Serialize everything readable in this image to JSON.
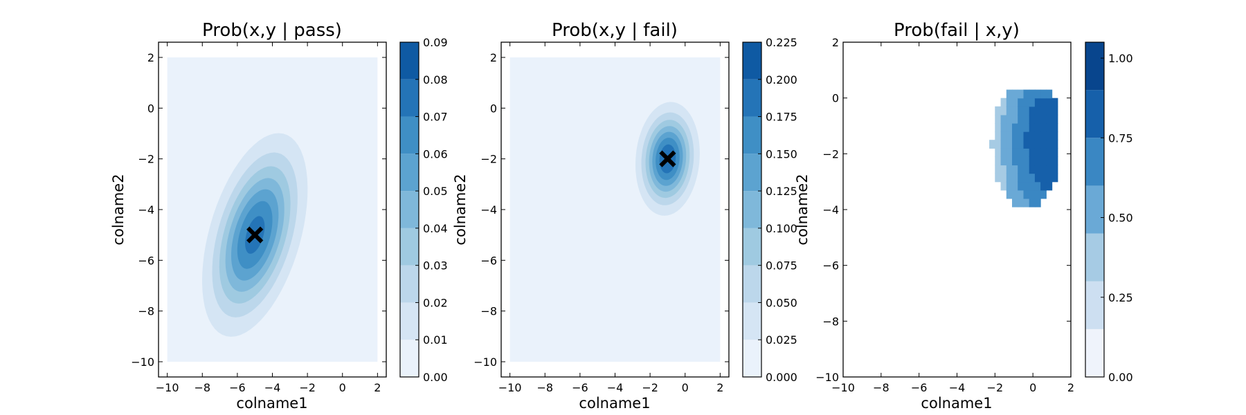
{
  "colors": {
    "levels": [
      "#eaf2fb",
      "#d5e5f4",
      "#bcd7eb",
      "#9fcae1",
      "#7fb8da",
      "#5ca3d0",
      "#3f8fc5",
      "#2474b7",
      "#0f5aa3",
      "#08448b"
    ],
    "marker": "#000000"
  },
  "chart_data": [
    {
      "type": "contour",
      "title": "Prob(x,y | pass)",
      "xlabel": "colname1",
      "ylabel": "colname2",
      "xlim": [
        -10.5,
        2.5
      ],
      "ylim": [
        -10.6,
        2.6
      ],
      "xticks": [
        -10,
        -8,
        -6,
        -4,
        -2,
        0,
        2
      ],
      "yticks": [
        -10,
        -8,
        -6,
        -4,
        -2,
        0,
        2
      ],
      "data_extent": {
        "x": [
          -10,
          2
        ],
        "y": [
          -10,
          2
        ]
      },
      "colorbar": {
        "range": [
          0,
          0.09
        ],
        "levels": [
          0,
          0.01,
          0.02,
          0.03,
          0.04,
          0.05,
          0.06,
          0.07,
          0.08,
          0.09
        ],
        "tick_labels": [
          "0.00",
          "0.01",
          "0.02",
          "0.03",
          "0.04",
          "0.05",
          "0.06",
          "0.07",
          "0.08",
          "0.09"
        ]
      },
      "distribution": {
        "center": [
          -5.0,
          -5.0
        ],
        "sigma_x": 1.5,
        "sigma_y": 2.0,
        "correlation": 0.45,
        "peak": 0.075
      },
      "marker": {
        "x": -5.0,
        "y": -5.0,
        "symbol": "X"
      }
    },
    {
      "type": "contour",
      "title": "Prob(x,y | fail)",
      "xlabel": "colname1",
      "ylabel": "colname2",
      "xlim": [
        -10.5,
        2.5
      ],
      "ylim": [
        -10.6,
        2.6
      ],
      "xticks": [
        -10,
        -8,
        -6,
        -4,
        -2,
        0,
        2
      ],
      "yticks": [
        -10,
        -8,
        -6,
        -4,
        -2,
        0,
        2
      ],
      "data_extent": {
        "x": [
          -10,
          2
        ],
        "y": [
          -10,
          2
        ]
      },
      "colorbar": {
        "range": [
          0,
          0.225
        ],
        "levels": [
          0,
          0.025,
          0.05,
          0.075,
          0.1,
          0.125,
          0.15,
          0.175,
          0.2,
          0.225
        ],
        "tick_labels": [
          "0.000",
          "0.025",
          "0.050",
          "0.075",
          "0.100",
          "0.125",
          "0.150",
          "0.175",
          "0.200",
          "0.225"
        ]
      },
      "distribution": {
        "center": [
          -1.0,
          -2.0
        ],
        "sigma_x": 0.9,
        "sigma_y": 1.1,
        "correlation": 0.1,
        "peak": 0.2
      },
      "marker": {
        "x": -1.0,
        "y": -2.0,
        "symbol": "X"
      }
    },
    {
      "type": "contour",
      "title": "Prob(fail | x,y)",
      "xlabel": "colname1",
      "ylabel": "colname2",
      "xlim": [
        -10,
        2
      ],
      "ylim": [
        -10,
        2
      ],
      "xticks": [
        -10,
        -8,
        -6,
        -4,
        -2,
        0,
        2
      ],
      "yticks": [
        -10,
        -8,
        -6,
        -4,
        -2,
        0,
        2
      ],
      "data_extent": {
        "x": [
          -3.5,
          1.2
        ],
        "y": [
          -4.5,
          0.2
        ]
      },
      "colorbar": {
        "range": [
          0,
          1.05
        ],
        "levels": [
          0,
          0.15,
          0.3,
          0.45,
          0.6,
          0.75,
          0.9,
          1.05
        ],
        "tick_labels": [
          "0.00",
          "0.25",
          "0.50",
          "0.75",
          "1.00"
        ],
        "tick_values": [
          0,
          0.25,
          0.5,
          0.75,
          1.0
        ]
      },
      "distribution": {
        "center": [
          -0.3,
          -1.6
        ],
        "sigma_x": 1.2,
        "sigma_y": 1.5,
        "correlation": 0.0,
        "peak": 1.0
      }
    }
  ]
}
